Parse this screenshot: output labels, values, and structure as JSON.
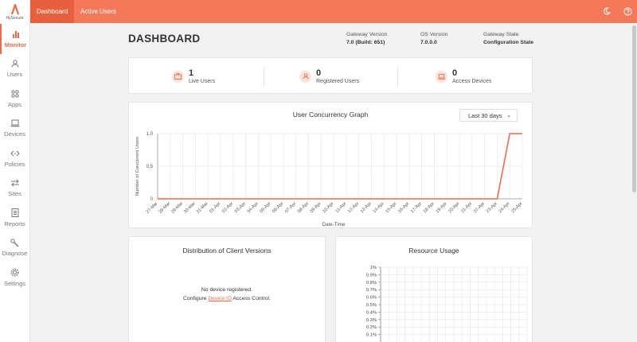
{
  "brand": {
    "logo_text": "HySecure",
    "accent": "#f06a4a"
  },
  "sidebar": {
    "items": [
      {
        "label": "Monitor",
        "icon": "bar-chart-icon",
        "active": true
      },
      {
        "label": "Users",
        "icon": "user-icon"
      },
      {
        "label": "Apps",
        "icon": "apps-icon"
      },
      {
        "label": "Devices",
        "icon": "laptop-icon"
      },
      {
        "label": "Policies",
        "icon": "code-arrows-icon"
      },
      {
        "label": "Sites",
        "icon": "transfer-arrows-icon"
      },
      {
        "label": "Reports",
        "icon": "report-icon"
      },
      {
        "label": "Diagnose",
        "icon": "wrench-icon"
      },
      {
        "label": "Settings",
        "icon": "gear-icon"
      }
    ]
  },
  "topbar": {
    "tabs": [
      {
        "label": "Dashboard",
        "active": true
      },
      {
        "label": "Active Users"
      }
    ],
    "icons": [
      "moon-icon",
      "help-icon"
    ]
  },
  "header": {
    "title": "DASHBOARD",
    "gateway_version": {
      "label": "Gateway Version",
      "value": "7.0 (Build: 651)"
    },
    "os_version": {
      "label": "OS Version",
      "value": "7.0.0.0"
    },
    "gateway_state": {
      "label": "Gateway State",
      "value": "Configuration State"
    }
  },
  "stats": [
    {
      "value": "1",
      "label": "Live Users",
      "icon": "briefcase-icon"
    },
    {
      "value": "0",
      "label": "Registered Users",
      "icon": "user-icon"
    },
    {
      "value": "0",
      "label": "Access Devices",
      "icon": "laptop-icon"
    }
  ],
  "graph": {
    "title": "User Concurrency Graph",
    "range_select": "Last 30 days"
  },
  "chart_data": {
    "type": "line",
    "ylabel": "Number of Concurrent Users",
    "xlabel": "Date-Time",
    "ylim": [
      0,
      1
    ],
    "yticks": [
      "0",
      "0.5",
      "1.0"
    ],
    "grid": true,
    "color": "#f06a4a",
    "categories": [
      "27-Mar",
      "28-Mar",
      "29-Mar",
      "30-Mar",
      "31-Mar",
      "01-Apr",
      "02-Apr",
      "03-Apr",
      "04-Apr",
      "05-Apr",
      "06-Apr",
      "07-Apr",
      "08-Apr",
      "09-Apr",
      "10-Apr",
      "11-Apr",
      "12-Apr",
      "13-Apr",
      "14-Apr",
      "15-Apr",
      "16-Apr",
      "17-Apr",
      "18-Apr",
      "19-Apr",
      "20-Apr",
      "21-Apr",
      "22-Apr",
      "23-Apr",
      "24-Apr",
      "25-Apr"
    ],
    "series": [
      {
        "values": [
          0,
          0,
          0,
          0,
          0,
          0,
          0,
          0,
          0,
          0,
          0,
          0,
          0,
          0,
          0,
          0,
          0,
          0,
          0,
          0,
          0,
          0,
          0,
          0,
          0,
          0,
          0,
          0,
          1,
          1
        ]
      }
    ]
  },
  "client_versions": {
    "title": "Distribution of Client Versions",
    "empty": "No device registered.",
    "configure_prefix": "Configure",
    "configure_link": "Device ID",
    "configure_suffix": "Access Control."
  },
  "resource_usage": {
    "title": "Resource Usage",
    "yticks": [
      "1%",
      "0.9%",
      "0.8%",
      "0.7%",
      "0.6%",
      "0.5%",
      "0.4%",
      "0.3%",
      "0.2%",
      "0.1%"
    ]
  }
}
